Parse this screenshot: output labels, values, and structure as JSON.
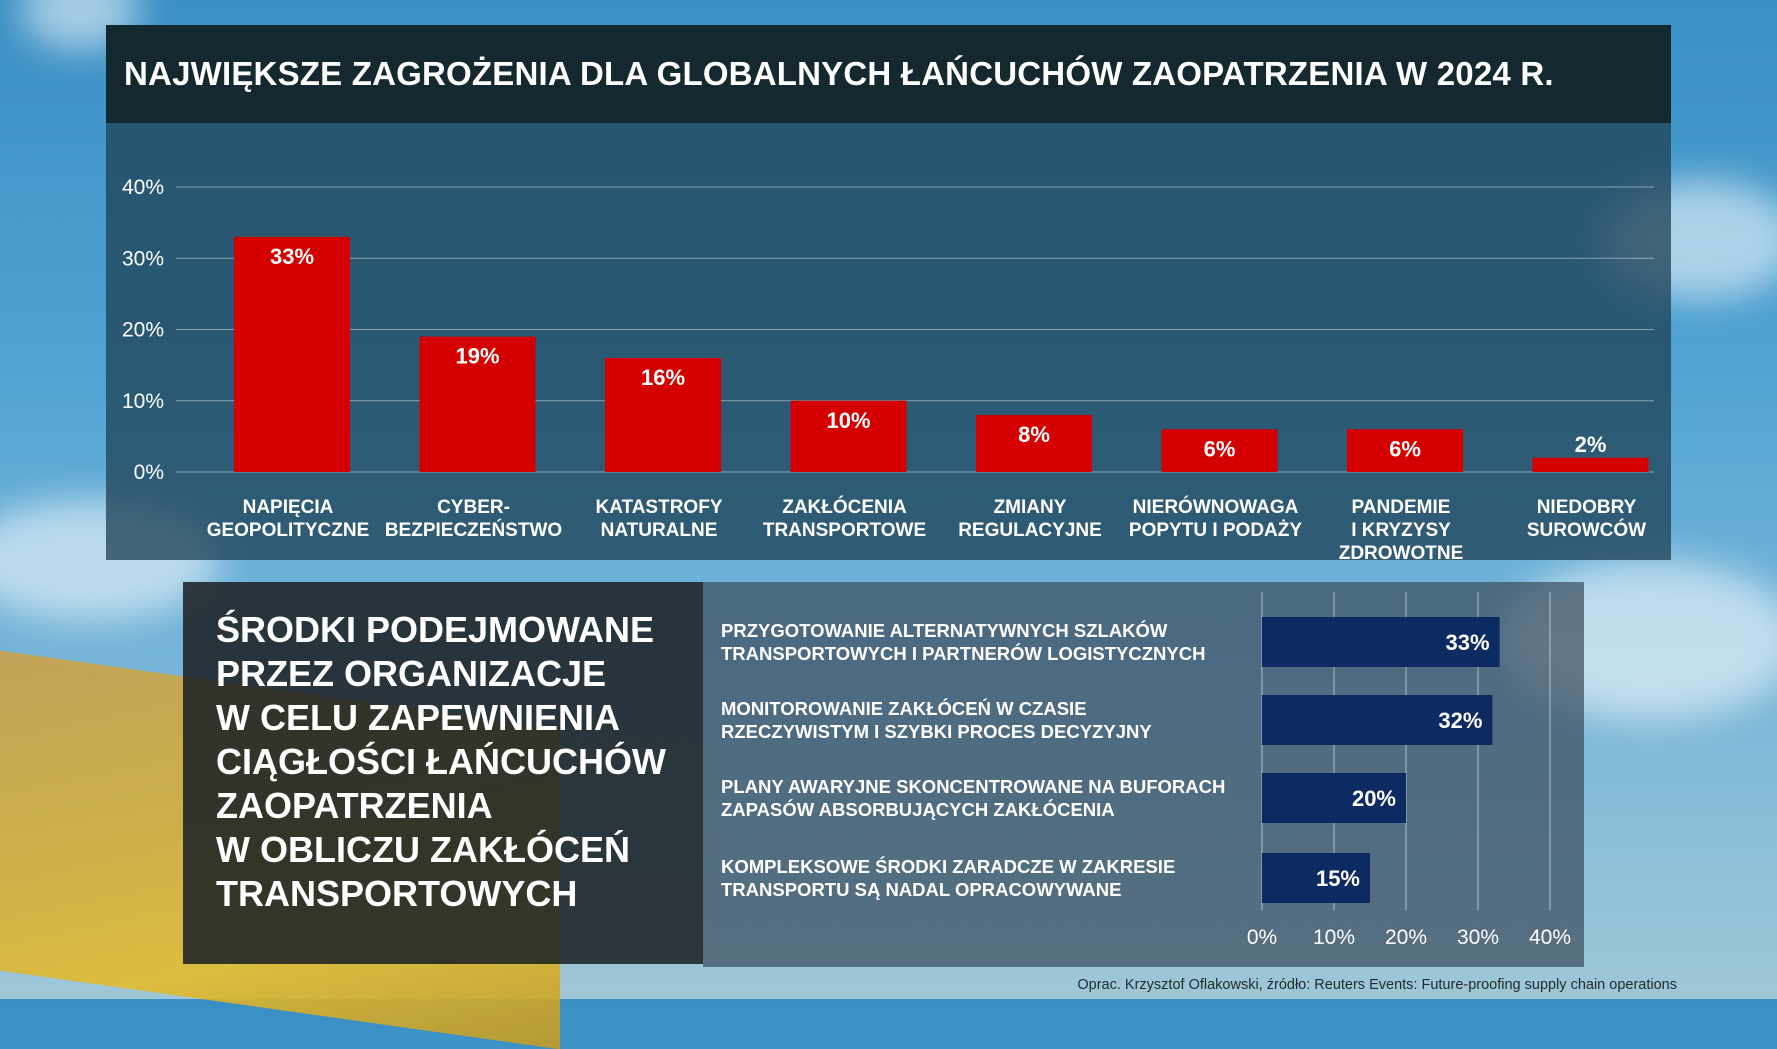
{
  "colors": {
    "bar_red": "#d40000",
    "bar_navy": "#0e2a63",
    "title_bg": "#14282f"
  },
  "source": "Oprac. Krzysztof Oflakowski, źródło: Reuters Events: Future-proofing supply chain operations",
  "chart_data": [
    {
      "type": "bar",
      "title": "NAJWIĘKSZE ZAGROŻENIA DLA GLOBALNYCH ŁAŃCUCHÓW ZAOPATRZENIA W 2024 R.",
      "categories": [
        [
          "NAPIĘCIA",
          "GEOPOLITYCZNE"
        ],
        [
          "CYBER-",
          "BEZPIECZEŃSTWO"
        ],
        [
          "KATASTROFY",
          "NATURALNE"
        ],
        [
          "ZAKŁÓCENIA",
          "TRANSPORTOWE"
        ],
        [
          "ZMIANY",
          "REGULACYJNE"
        ],
        [
          "NIERÓWNOWAGA",
          "POPYTU I PODAŻY"
        ],
        [
          "PANDEMIE",
          "I KRYZYSY",
          "ZDROWOTNE"
        ],
        [
          "NIEDOBRY",
          "SUROWCÓW"
        ]
      ],
      "values": [
        33,
        19,
        16,
        10,
        8,
        6,
        6,
        2
      ],
      "data_labels": [
        "33%",
        "19%",
        "16%",
        "10%",
        "8%",
        "6%",
        "6%",
        "2%"
      ],
      "y_ticks": [
        "0%",
        "10%",
        "20%",
        "30%",
        "40%"
      ],
      "ylim": [
        0,
        40
      ],
      "grid": true
    },
    {
      "type": "bar",
      "orientation": "horizontal",
      "title": "ŚRODKI PODEJMOWANE\nPRZEZ ORGANIZACJE\nW CELU  ZAPEWNIENIA\nCIĄGŁOŚCI ŁAŃCUCHÓW\nZAOPATRZENIA\nW OBLICZU ZAKŁÓCEŃ\nTRANSPORTOWYCH",
      "categories": [
        [
          "PRZYGOTOWANIE ALTERNATYWNYCH SZLAKÓW",
          "TRANSPORTOWYCH I PARTNERÓW  LOGISTYCZNYCH"
        ],
        [
          "MONITOROWANIE ZAKŁÓCEŃ W CZASIE",
          "RZECZYWISTYM I SZYBKI PROCES DECYZYJNY"
        ],
        [
          "PLANY AWARYJNE SKONCENTROWANE NA BUFORACH",
          "ZAPASÓW  ABSORBUJĄCYCH  ZAKŁÓCENIA"
        ],
        [
          "KOMPLEKSOWE  ŚRODKI ZARADCZE  W ZAKRESIE",
          "TRANSPORTU  SĄ NADAL  OPRACOWYWANE"
        ]
      ],
      "values": [
        33,
        32,
        20,
        15
      ],
      "data_labels": [
        "33%",
        "32%",
        "20%",
        "15%"
      ],
      "x_ticks": [
        "0%",
        "10%",
        "20%",
        "30%",
        "40%"
      ],
      "xlim": [
        0,
        40
      ],
      "grid": true
    }
  ]
}
